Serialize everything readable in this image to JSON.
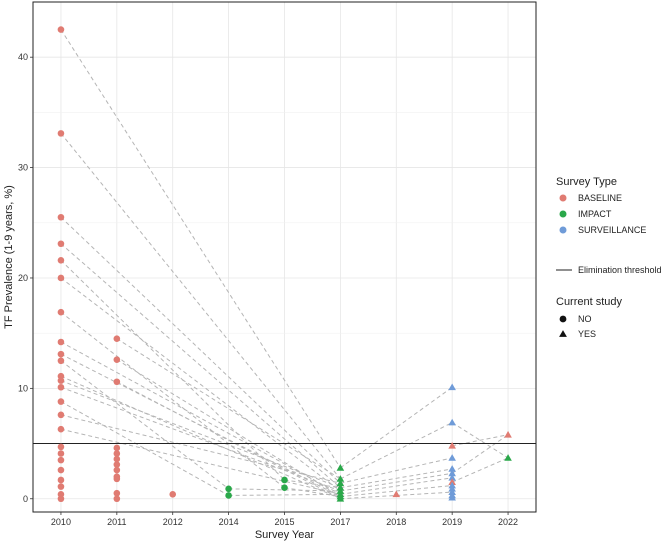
{
  "chart_data": {
    "type": "scatter",
    "xlabel": "Survey Year",
    "ylabel": "TF Prevalence (1-9 years, %)",
    "x_categories": [
      "2010",
      "2011",
      "2012",
      "2014",
      "2015",
      "2017",
      "2018",
      "2019",
      "2022"
    ],
    "y_ticks": [
      0,
      10,
      20,
      30,
      40
    ],
    "ylim": [
      -1.2,
      45
    ],
    "grid": true,
    "threshold": {
      "label": "Elimination threshold",
      "value": 5
    },
    "legend": {
      "placement": "right",
      "survey_type_title": "Survey Type",
      "survey_types": [
        {
          "label": "BASELINE",
          "color": "#e07b72"
        },
        {
          "label": "IMPACT",
          "color": "#2aa84a"
        },
        {
          "label": "SURVEILLANCE",
          "color": "#6f9bd8"
        }
      ],
      "current_study_title": "Current study",
      "current_study": [
        {
          "label": "NO",
          "shape": "circle"
        },
        {
          "label": "YES",
          "shape": "triangle"
        }
      ]
    },
    "points": [
      {
        "x": "2010",
        "y": 42.5,
        "type": "BASELINE",
        "current": "NO"
      },
      {
        "x": "2010",
        "y": 33.1,
        "type": "BASELINE",
        "current": "NO"
      },
      {
        "x": "2010",
        "y": 25.5,
        "type": "BASELINE",
        "current": "NO"
      },
      {
        "x": "2010",
        "y": 23.1,
        "type": "BASELINE",
        "current": "NO"
      },
      {
        "x": "2010",
        "y": 21.6,
        "type": "BASELINE",
        "current": "NO"
      },
      {
        "x": "2010",
        "y": 20.0,
        "type": "BASELINE",
        "current": "NO"
      },
      {
        "x": "2010",
        "y": 16.9,
        "type": "BASELINE",
        "current": "NO"
      },
      {
        "x": "2010",
        "y": 14.2,
        "type": "BASELINE",
        "current": "NO"
      },
      {
        "x": "2010",
        "y": 13.1,
        "type": "BASELINE",
        "current": "NO"
      },
      {
        "x": "2010",
        "y": 12.5,
        "type": "BASELINE",
        "current": "NO"
      },
      {
        "x": "2010",
        "y": 11.1,
        "type": "BASELINE",
        "current": "NO"
      },
      {
        "x": "2010",
        "y": 10.7,
        "type": "BASELINE",
        "current": "NO"
      },
      {
        "x": "2010",
        "y": 10.1,
        "type": "BASELINE",
        "current": "NO"
      },
      {
        "x": "2010",
        "y": 8.8,
        "type": "BASELINE",
        "current": "NO"
      },
      {
        "x": "2010",
        "y": 7.6,
        "type": "BASELINE",
        "current": "NO"
      },
      {
        "x": "2010",
        "y": 6.3,
        "type": "BASELINE",
        "current": "NO"
      },
      {
        "x": "2010",
        "y": 4.7,
        "type": "BASELINE",
        "current": "NO"
      },
      {
        "x": "2010",
        "y": 4.1,
        "type": "BASELINE",
        "current": "NO"
      },
      {
        "x": "2010",
        "y": 3.5,
        "type": "BASELINE",
        "current": "NO"
      },
      {
        "x": "2010",
        "y": 2.6,
        "type": "BASELINE",
        "current": "NO"
      },
      {
        "x": "2010",
        "y": 1.7,
        "type": "BASELINE",
        "current": "NO"
      },
      {
        "x": "2010",
        "y": 1.1,
        "type": "BASELINE",
        "current": "NO"
      },
      {
        "x": "2010",
        "y": 0.4,
        "type": "BASELINE",
        "current": "NO"
      },
      {
        "x": "2010",
        "y": 0.0,
        "type": "BASELINE",
        "current": "NO"
      },
      {
        "x": "2011",
        "y": 14.5,
        "type": "BASELINE",
        "current": "NO"
      },
      {
        "x": "2011",
        "y": 12.6,
        "type": "BASELINE",
        "current": "NO"
      },
      {
        "x": "2011",
        "y": 10.6,
        "type": "BASELINE",
        "current": "NO"
      },
      {
        "x": "2011",
        "y": 4.6,
        "type": "BASELINE",
        "current": "NO"
      },
      {
        "x": "2011",
        "y": 4.1,
        "type": "BASELINE",
        "current": "NO"
      },
      {
        "x": "2011",
        "y": 3.6,
        "type": "BASELINE",
        "current": "NO"
      },
      {
        "x": "2011",
        "y": 3.1,
        "type": "BASELINE",
        "current": "NO"
      },
      {
        "x": "2011",
        "y": 2.6,
        "type": "BASELINE",
        "current": "NO"
      },
      {
        "x": "2011",
        "y": 2.0,
        "type": "BASELINE",
        "current": "NO"
      },
      {
        "x": "2011",
        "y": 1.8,
        "type": "BASELINE",
        "current": "NO"
      },
      {
        "x": "2011",
        "y": 0.5,
        "type": "BASELINE",
        "current": "NO"
      },
      {
        "x": "2011",
        "y": 0.0,
        "type": "BASELINE",
        "current": "NO"
      },
      {
        "x": "2012",
        "y": 0.4,
        "type": "BASELINE",
        "current": "NO"
      },
      {
        "x": "2014",
        "y": 0.9,
        "type": "IMPACT",
        "current": "NO"
      },
      {
        "x": "2014",
        "y": 0.3,
        "type": "IMPACT",
        "current": "NO"
      },
      {
        "x": "2015",
        "y": 1.7,
        "type": "IMPACT",
        "current": "NO"
      },
      {
        "x": "2015",
        "y": 1.0,
        "type": "IMPACT",
        "current": "NO"
      },
      {
        "x": "2017",
        "y": 2.8,
        "type": "IMPACT",
        "current": "YES"
      },
      {
        "x": "2017",
        "y": 1.8,
        "type": "IMPACT",
        "current": "YES"
      },
      {
        "x": "2017",
        "y": 1.4,
        "type": "IMPACT",
        "current": "YES"
      },
      {
        "x": "2017",
        "y": 1.0,
        "type": "IMPACT",
        "current": "YES"
      },
      {
        "x": "2017",
        "y": 0.7,
        "type": "IMPACT",
        "current": "YES"
      },
      {
        "x": "2017",
        "y": 0.4,
        "type": "IMPACT",
        "current": "YES"
      },
      {
        "x": "2017",
        "y": 0.2,
        "type": "IMPACT",
        "current": "YES"
      },
      {
        "x": "2017",
        "y": 0.0,
        "type": "IMPACT",
        "current": "YES"
      },
      {
        "x": "2018",
        "y": 0.4,
        "type": "BASELINE",
        "current": "YES"
      },
      {
        "x": "2019",
        "y": 10.1,
        "type": "SURVEILLANCE",
        "current": "YES"
      },
      {
        "x": "2019",
        "y": 6.9,
        "type": "SURVEILLANCE",
        "current": "YES"
      },
      {
        "x": "2019",
        "y": 4.8,
        "type": "BASELINE",
        "current": "YES"
      },
      {
        "x": "2019",
        "y": 3.7,
        "type": "SURVEILLANCE",
        "current": "YES"
      },
      {
        "x": "2019",
        "y": 2.7,
        "type": "SURVEILLANCE",
        "current": "YES"
      },
      {
        "x": "2019",
        "y": 2.3,
        "type": "SURVEILLANCE",
        "current": "YES"
      },
      {
        "x": "2019",
        "y": 1.9,
        "type": "SURVEILLANCE",
        "current": "YES"
      },
      {
        "x": "2019",
        "y": 1.5,
        "type": "BASELINE",
        "current": "YES"
      },
      {
        "x": "2019",
        "y": 1.2,
        "type": "SURVEILLANCE",
        "current": "YES"
      },
      {
        "x": "2019",
        "y": 0.9,
        "type": "SURVEILLANCE",
        "current": "YES"
      },
      {
        "x": "2019",
        "y": 0.6,
        "type": "SURVEILLANCE",
        "current": "YES"
      },
      {
        "x": "2019",
        "y": 0.3,
        "type": "SURVEILLANCE",
        "current": "YES"
      },
      {
        "x": "2019",
        "y": 0.1,
        "type": "SURVEILLANCE",
        "current": "YES"
      },
      {
        "x": "2022",
        "y": 5.8,
        "type": "BASELINE",
        "current": "YES"
      },
      {
        "x": "2022",
        "y": 3.7,
        "type": "IMPACT",
        "current": "YES"
      }
    ],
    "trajectories": [
      [
        {
          "x": "2010",
          "y": 42.5
        },
        {
          "x": "2017",
          "y": 2.8
        }
      ],
      [
        {
          "x": "2010",
          "y": 33.1
        },
        {
          "x": "2017",
          "y": 1.8
        }
      ],
      [
        {
          "x": "2010",
          "y": 25.5
        },
        {
          "x": "2017",
          "y": 1.4
        }
      ],
      [
        {
          "x": "2010",
          "y": 23.1
        },
        {
          "x": "2017",
          "y": 1.0
        }
      ],
      [
        {
          "x": "2010",
          "y": 21.6
        },
        {
          "x": "2015",
          "y": 1.7
        }
      ],
      [
        {
          "x": "2010",
          "y": 20.0
        },
        {
          "x": "2017",
          "y": 0.7
        }
      ],
      [
        {
          "x": "2010",
          "y": 16.9
        },
        {
          "x": "2015",
          "y": 1.0
        }
      ],
      [
        {
          "x": "2010",
          "y": 14.2
        },
        {
          "x": "2017",
          "y": 0.4
        }
      ],
      [
        {
          "x": "2010",
          "y": 13.1
        },
        {
          "x": "2017",
          "y": 0.2
        }
      ],
      [
        {
          "x": "2010",
          "y": 12.5
        },
        {
          "x": "2014",
          "y": 0.9
        }
      ],
      [
        {
          "x": "2010",
          "y": 11.1
        },
        {
          "x": "2017",
          "y": 0.0
        }
      ],
      [
        {
          "x": "2010",
          "y": 10.7
        },
        {
          "x": "2017",
          "y": 1.0
        }
      ],
      [
        {
          "x": "2010",
          "y": 10.1
        },
        {
          "x": "2017",
          "y": 0.7
        }
      ],
      [
        {
          "x": "2010",
          "y": 8.8
        },
        {
          "x": "2014",
          "y": 0.3
        }
      ],
      [
        {
          "x": "2010",
          "y": 7.6
        },
        {
          "x": "2017",
          "y": 1.4
        }
      ],
      [
        {
          "x": "2010",
          "y": 6.3
        },
        {
          "x": "2017",
          "y": 0.4
        }
      ],
      [
        {
          "x": "2011",
          "y": 14.5
        },
        {
          "x": "2017",
          "y": 1.8
        }
      ],
      [
        {
          "x": "2011",
          "y": 12.6
        },
        {
          "x": "2017",
          "y": 0.2
        }
      ],
      [
        {
          "x": "2011",
          "y": 10.6
        },
        {
          "x": "2017",
          "y": 0.0
        }
      ],
      [
        {
          "x": "2014",
          "y": 0.9
        },
        {
          "x": "2017",
          "y": 0.7
        }
      ],
      [
        {
          "x": "2014",
          "y": 0.3
        },
        {
          "x": "2017",
          "y": 0.4
        }
      ],
      [
        {
          "x": "2015",
          "y": 1.7
        },
        {
          "x": "2017",
          "y": 1.0
        }
      ],
      [
        {
          "x": "2015",
          "y": 1.0
        },
        {
          "x": "2017",
          "y": 0.2
        }
      ],
      [
        {
          "x": "2017",
          "y": 2.8
        },
        {
          "x": "2019",
          "y": 10.1
        }
      ],
      [
        {
          "x": "2017",
          "y": 1.8
        },
        {
          "x": "2019",
          "y": 6.9
        }
      ],
      [
        {
          "x": "2017",
          "y": 1.4
        },
        {
          "x": "2019",
          "y": 3.7
        }
      ],
      [
        {
          "x": "2017",
          "y": 1.0
        },
        {
          "x": "2019",
          "y": 2.7
        }
      ],
      [
        {
          "x": "2017",
          "y": 0.7
        },
        {
          "x": "2019",
          "y": 2.3
        }
      ],
      [
        {
          "x": "2017",
          "y": 0.4
        },
        {
          "x": "2019",
          "y": 1.9
        }
      ],
      [
        {
          "x": "2017",
          "y": 0.2
        },
        {
          "x": "2019",
          "y": 1.2
        }
      ],
      [
        {
          "x": "2017",
          "y": 0.0
        },
        {
          "x": "2019",
          "y": 0.6
        }
      ],
      [
        {
          "x": "2019",
          "y": 6.9
        },
        {
          "x": "2022",
          "y": 3.7
        }
      ],
      [
        {
          "x": "2019",
          "y": 4.8
        },
        {
          "x": "2022",
          "y": 5.8
        }
      ],
      [
        {
          "x": "2019",
          "y": 2.3
        },
        {
          "x": "2022",
          "y": 5.8
        }
      ],
      [
        {
          "x": "2019",
          "y": 1.5
        },
        {
          "x": "2022",
          "y": 3.7
        }
      ]
    ]
  }
}
